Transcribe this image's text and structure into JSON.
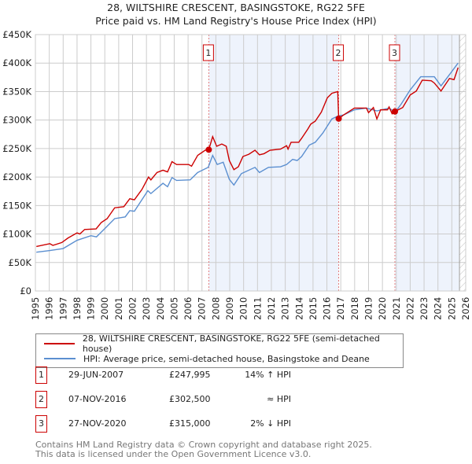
{
  "title": "28, WILTSHIRE CRESCENT, BASINGSTOKE, RG22 5FE",
  "subtitle": "Price paid vs. HM Land Registry's House Price Index (HPI)",
  "legend": {
    "red": "28, WILTSHIRE CRESCENT, BASINGSTOKE, RG22 5FE (semi-detached house)",
    "blue": "HPI: Average price, semi-detached house, Basingstoke and Deane"
  },
  "sales": [
    {
      "n": "1",
      "date": "29-JUN-2007",
      "price": "£247,995",
      "hpi": "14% ↑ HPI"
    },
    {
      "n": "2",
      "date": "07-NOV-2016",
      "price": "£302,500",
      "hpi": "≈ HPI"
    },
    {
      "n": "3",
      "date": "27-NOV-2020",
      "price": "£315,000",
      "hpi": "2% ↓ HPI"
    }
  ],
  "footer": {
    "line1": "Contains HM Land Registry data © Crown copyright and database right 2025.",
    "line2": "This data is licensed under the Open Government Licence v3.0."
  },
  "colors": {
    "red": "#cc0000",
    "blue": "#5b8fd0",
    "shade": "#eef3fc"
  },
  "chart_data": {
    "type": "line",
    "xlim": [
      1995,
      2026
    ],
    "ylim": [
      0,
      450000
    ],
    "yticks": [
      {
        "v": 0,
        "label": "£0"
      },
      {
        "v": 50000,
        "label": "£50K"
      },
      {
        "v": 100000,
        "label": "£100K"
      },
      {
        "v": 150000,
        "label": "£150K"
      },
      {
        "v": 200000,
        "label": "£200K"
      },
      {
        "v": 250000,
        "label": "£250K"
      },
      {
        "v": 300000,
        "label": "£300K"
      },
      {
        "v": 350000,
        "label": "£350K"
      },
      {
        "v": 400000,
        "label": "£400K"
      },
      {
        "v": 450000,
        "label": "£450K"
      }
    ],
    "xticks": [
      "1995",
      "1996",
      "1997",
      "1998",
      "1999",
      "2000",
      "2001",
      "2002",
      "2003",
      "2004",
      "2005",
      "2006",
      "2007",
      "2008",
      "2009",
      "2010",
      "2011",
      "2012",
      "2013",
      "2014",
      "2015",
      "2016",
      "2017",
      "2018",
      "2019",
      "2020",
      "2021",
      "2022",
      "2023",
      "2024",
      "2025",
      "2026"
    ],
    "shaded_ranges": [
      [
        2007.49,
        2016.85
      ],
      [
        2020.9,
        2025.5
      ]
    ],
    "forecast_from": 2025.55,
    "markers": [
      {
        "label": "1",
        "x": 2007.49,
        "y": 247995
      },
      {
        "label": "2",
        "x": 2016.85,
        "y": 302500
      },
      {
        "label": "3",
        "x": 2020.9,
        "y": 315000
      }
    ],
    "series": [
      {
        "name": "28, WILTSHIRE CRESCENT, BASINGSTOKE, RG22 5FE (semi-detached house)",
        "color": "#cc0000",
        "points": [
          [
            1995.07,
            78
          ],
          [
            1996.04,
            83
          ],
          [
            1996.26,
            80
          ],
          [
            1996.9,
            85
          ],
          [
            1997.35,
            93
          ],
          [
            1998,
            102
          ],
          [
            1998.2,
            100
          ],
          [
            1998.55,
            108
          ],
          [
            1999.37,
            109
          ],
          [
            1999.74,
            120
          ],
          [
            2000.17,
            127
          ],
          [
            2000.71,
            146
          ],
          [
            2001.37,
            148
          ],
          [
            2001.8,
            162
          ],
          [
            2002.13,
            160
          ],
          [
            2002.67,
            178
          ],
          [
            2003.15,
            200
          ],
          [
            2003.32,
            195
          ],
          [
            2003.76,
            208
          ],
          [
            2004.19,
            212
          ],
          [
            2004.52,
            209
          ],
          [
            2004.84,
            227
          ],
          [
            2005.17,
            222
          ],
          [
            2006.04,
            222
          ],
          [
            2006.25,
            219
          ],
          [
            2006.69,
            238
          ],
          [
            2007.23,
            247
          ],
          [
            2007.49,
            248
          ],
          [
            2007.77,
            271
          ],
          [
            2008.06,
            254
          ],
          [
            2008.43,
            258
          ],
          [
            2008.75,
            254
          ],
          [
            2008.97,
            229
          ],
          [
            2009.3,
            213
          ],
          [
            2009.62,
            218
          ],
          [
            2009.95,
            236
          ],
          [
            2010.38,
            240
          ],
          [
            2010.82,
            247
          ],
          [
            2011.14,
            239
          ],
          [
            2011.47,
            241
          ],
          [
            2011.9,
            247
          ],
          [
            2012.66,
            249
          ],
          [
            2013.1,
            255
          ],
          [
            2013.2,
            249
          ],
          [
            2013.42,
            261
          ],
          [
            2013.97,
            261
          ],
          [
            2014.18,
            268
          ],
          [
            2014.62,
            284
          ],
          [
            2014.84,
            293
          ],
          [
            2015.16,
            298
          ],
          [
            2015.6,
            314
          ],
          [
            2016.03,
            339
          ],
          [
            2016.36,
            347
          ],
          [
            2016.78,
            350
          ],
          [
            2016.85,
            302.5
          ],
          [
            2017.2,
            309
          ],
          [
            2017.98,
            321
          ],
          [
            2018.85,
            321
          ],
          [
            2019.0,
            313
          ],
          [
            2019.35,
            322
          ],
          [
            2019.6,
            302
          ],
          [
            2019.87,
            318
          ],
          [
            2020.37,
            318
          ],
          [
            2020.48,
            323
          ],
          [
            2020.7,
            311
          ],
          [
            2020.9,
            315
          ],
          [
            2021.46,
            322
          ],
          [
            2022.0,
            344
          ],
          [
            2022.44,
            351
          ],
          [
            2022.87,
            370
          ],
          [
            2023.52,
            369
          ],
          [
            2023.74,
            365
          ],
          [
            2024.22,
            351
          ],
          [
            2024.83,
            373
          ],
          [
            2025.16,
            371
          ],
          [
            2025.45,
            392
          ]
        ]
      },
      {
        "name": "HPI: Average price, semi-detached house, Basingstoke and Deane",
        "color": "#5b8fd0",
        "points": [
          [
            1995.07,
            68
          ],
          [
            1996.04,
            71
          ],
          [
            1997,
            74.5
          ],
          [
            1998,
            89
          ],
          [
            1999,
            97
          ],
          [
            1999.4,
            95
          ],
          [
            2000.06,
            111
          ],
          [
            2000.71,
            127
          ],
          [
            2001.47,
            130
          ],
          [
            2001.8,
            141
          ],
          [
            2002.13,
            140
          ],
          [
            2003.1,
            176
          ],
          [
            2003.32,
            171
          ],
          [
            2004.19,
            189
          ],
          [
            2004.52,
            183
          ],
          [
            2004.84,
            199
          ],
          [
            2005.17,
            194
          ],
          [
            2006.15,
            195
          ],
          [
            2006.69,
            208
          ],
          [
            2007.45,
            217
          ],
          [
            2007.77,
            238
          ],
          [
            2008.1,
            222
          ],
          [
            2008.53,
            226
          ],
          [
            2008.97,
            196
          ],
          [
            2009.3,
            186
          ],
          [
            2009.84,
            206
          ],
          [
            2010.82,
            217
          ],
          [
            2011.14,
            208
          ],
          [
            2011.79,
            217
          ],
          [
            2012.66,
            218
          ],
          [
            2013.1,
            222
          ],
          [
            2013.53,
            231
          ],
          [
            2013.86,
            229
          ],
          [
            2014.18,
            236
          ],
          [
            2014.73,
            256
          ],
          [
            2015.16,
            261
          ],
          [
            2015.7,
            277
          ],
          [
            2016.36,
            302
          ],
          [
            2016.8,
            307
          ],
          [
            2017.2,
            309
          ],
          [
            2017.98,
            318
          ],
          [
            2018.85,
            321
          ],
          [
            2019.6,
            316
          ],
          [
            2020.48,
            321
          ],
          [
            2020.92,
            314
          ],
          [
            2021.35,
            328
          ],
          [
            2022.0,
            353
          ],
          [
            2022.76,
            376
          ],
          [
            2023.74,
            376
          ],
          [
            2024.22,
            360
          ],
          [
            2024.93,
            383
          ],
          [
            2025.45,
            400
          ]
        ]
      }
    ]
  }
}
